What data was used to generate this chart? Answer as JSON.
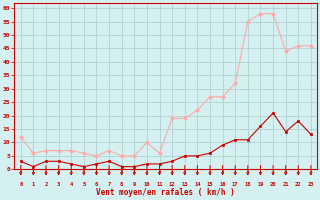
{
  "x": [
    0,
    1,
    2,
    3,
    4,
    5,
    6,
    7,
    8,
    9,
    10,
    11,
    12,
    13,
    14,
    15,
    16,
    17,
    18,
    19,
    20,
    21,
    22,
    23
  ],
  "y_rafales": [
    12,
    6,
    7,
    7,
    7,
    6,
    5,
    7,
    5,
    5,
    10,
    6,
    19,
    19,
    22,
    27,
    27,
    32,
    55,
    58,
    58,
    44,
    46,
    46
  ],
  "y_moyen": [
    3,
    1,
    3,
    3,
    2,
    1,
    2,
    3,
    1,
    1,
    2,
    2,
    3,
    5,
    5,
    6,
    9,
    11,
    11,
    16,
    21,
    14,
    18,
    13
  ],
  "color_rafales": "#ffaaaa",
  "color_moyen": "#cc0000",
  "bg_color": "#d4f0f0",
  "grid_color": "#aacccc",
  "xlabel": "Vent moyen/en rafales ( km/h )",
  "xlabel_color": "#cc0000",
  "tick_color": "#cc0000",
  "ylim": [
    0,
    62
  ],
  "yticks": [
    0,
    5,
    10,
    15,
    20,
    25,
    30,
    35,
    40,
    45,
    50,
    55,
    60
  ],
  "marker_raf": "D",
  "marker_moy": "s",
  "marker_size": 2.0,
  "line_width": 0.8
}
